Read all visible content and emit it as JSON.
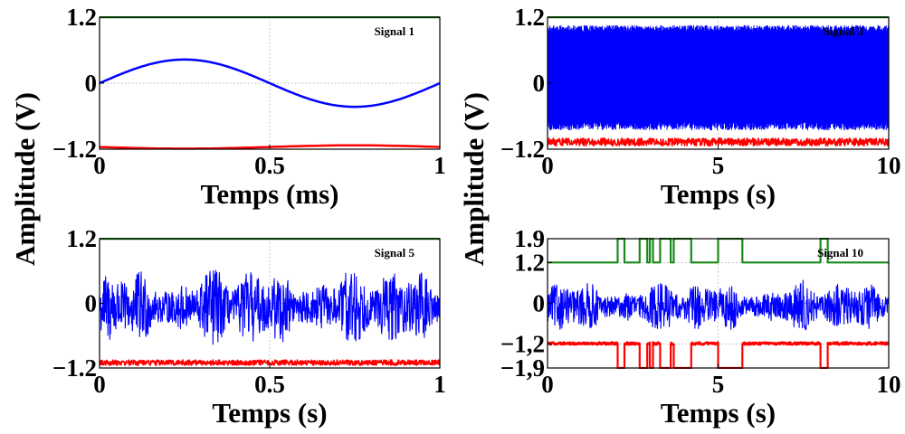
{
  "figure": {
    "ylabel": "Amplitude (V)"
  },
  "colors": {
    "upper": "#1a8a1a",
    "signal": "#0000ff",
    "lower": "#ff0000",
    "axes": "#000000",
    "grid": "#999999"
  },
  "chart_data": [
    {
      "type": "line",
      "title": "Signal 1",
      "xlabel": "Temps (ms)",
      "xlim": [
        0,
        1
      ],
      "ylim": [
        -1.2,
        1.2
      ],
      "xticks": [
        0,
        0.5,
        1
      ],
      "xtick_labels": [
        "0",
        "0.5",
        "1"
      ],
      "yticks": [
        -1.2,
        0,
        1.2
      ],
      "ytick_labels": [
        "−1.2",
        "0",
        "1.2"
      ],
      "grid": true,
      "signal_kind": "sine",
      "series": [
        {
          "color": "green",
          "kind": "constant",
          "value": 1.2
        },
        {
          "color": "blue",
          "kind": "sine",
          "amplitude": 0.43,
          "frequency": 1,
          "offset": 0
        },
        {
          "color": "red",
          "kind": "sine",
          "amplitude": 0.03,
          "frequency": 1,
          "offset": -1.16,
          "phase": 3.14159
        }
      ]
    },
    {
      "type": "line",
      "title": "Signal 3",
      "xlabel": "Temps (s)",
      "xlim": [
        0,
        10
      ],
      "ylim": [
        -1.2,
        1.2
      ],
      "xticks": [
        0,
        5,
        10
      ],
      "xtick_labels": [
        "0",
        "5",
        "10"
      ],
      "yticks": [
        -1.2,
        0,
        1.2
      ],
      "ytick_labels": [
        "−1.2",
        "0",
        "1.2"
      ],
      "grid": true,
      "signal_kind": "dense",
      "series": [
        {
          "color": "green",
          "kind": "constant",
          "value": 1.2
        },
        {
          "color": "blue",
          "kind": "dense",
          "min": -0.85,
          "max": 1.05
        },
        {
          "color": "red",
          "kind": "band",
          "min": -1.14,
          "max": -1.0
        }
      ]
    },
    {
      "type": "line",
      "title": "Signal 5",
      "xlabel": "Temps (s)",
      "xlim": [
        0,
        1
      ],
      "ylim": [
        -1.2,
        1.2
      ],
      "xticks": [
        0,
        0.5,
        1
      ],
      "xtick_labels": [
        "0",
        "0.5",
        "1"
      ],
      "yticks": [
        -1.2,
        0,
        1.2
      ],
      "ytick_labels": [
        "−1.2",
        "0",
        "1.2"
      ],
      "grid": true,
      "signal_kind": "noise",
      "series": [
        {
          "color": "green",
          "kind": "constant",
          "value": 1.2
        },
        {
          "color": "blue",
          "kind": "noise",
          "min": -0.9,
          "max": 0.75
        },
        {
          "color": "red",
          "kind": "band",
          "min": -1.15,
          "max": -1.05
        }
      ]
    },
    {
      "type": "line",
      "title": "Signal 10",
      "xlabel": "Temps (s)",
      "xlim": [
        0,
        10
      ],
      "ylim": [
        -1.9,
        1.9
      ],
      "xticks": [
        0,
        5,
        10
      ],
      "xtick_labels": [
        "0",
        "5",
        "10"
      ],
      "yticks": [
        -1.9,
        -1.2,
        0,
        1.2,
        1.9
      ],
      "ytick_labels": [
        "−1,9",
        "−1,2",
        "0",
        "1.2",
        "1.9"
      ],
      "grid": true,
      "signal_kind": "switching",
      "switch_intervals": [
        [
          2.05,
          2.25
        ],
        [
          2.7,
          2.92
        ],
        [
          3.0,
          3.08
        ],
        [
          3.3,
          3.6
        ],
        [
          3.7,
          4.2
        ],
        [
          5.0,
          5.7
        ],
        [
          8.0,
          8.2
        ]
      ],
      "series": [
        {
          "color": "green",
          "kind": "switch",
          "base": 1.2,
          "high": 1.9
        },
        {
          "color": "blue",
          "kind": "noise",
          "min": -0.95,
          "max": 0.75
        },
        {
          "color": "red",
          "kind": "switch",
          "base": -1.2,
          "high": -1.9
        }
      ]
    }
  ]
}
